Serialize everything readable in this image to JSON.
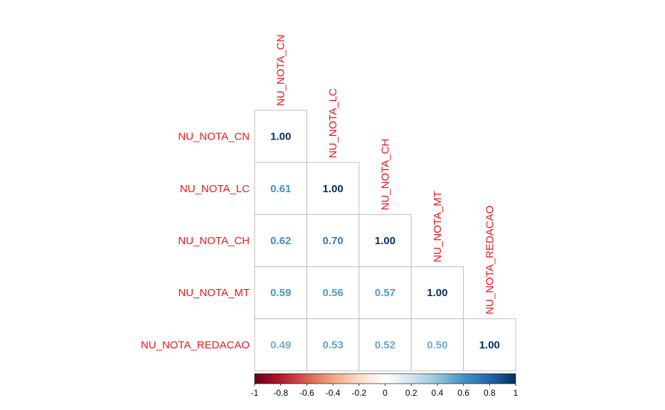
{
  "chart_data": {
    "type": "heatmap",
    "variables": [
      "NU_NOTA_CN",
      "NU_NOTA_LC",
      "NU_NOTA_CH",
      "NU_NOTA_MT",
      "NU_NOTA_REDACAO"
    ],
    "matrix_lower": [
      [
        "1.00"
      ],
      [
        "0.61",
        "1.00"
      ],
      [
        "0.62",
        "0.70",
        "1.00"
      ],
      [
        "0.59",
        "0.56",
        "0.57",
        "1.00"
      ],
      [
        "0.49",
        "0.53",
        "0.52",
        "0.50",
        "1.00"
      ]
    ],
    "colorbar": {
      "range": [
        -1,
        1
      ],
      "ticks": [
        "-1",
        "-0.8",
        "-0.6",
        "-0.4",
        "-0.2",
        "0",
        "0.2",
        "0.4",
        "0.6",
        "0.8",
        "1"
      ],
      "colors": [
        "#67001F",
        "#B2182B",
        "#D6604D",
        "#F4A582",
        "#FDDBC7",
        "#FFFFFF",
        "#D1E5F0",
        "#92C5DE",
        "#4393C3",
        "#2166AC",
        "#053061"
      ]
    },
    "label_color": "#E31A1C",
    "grid_color": "#BEBEBE",
    "legend_position": "bottom"
  }
}
